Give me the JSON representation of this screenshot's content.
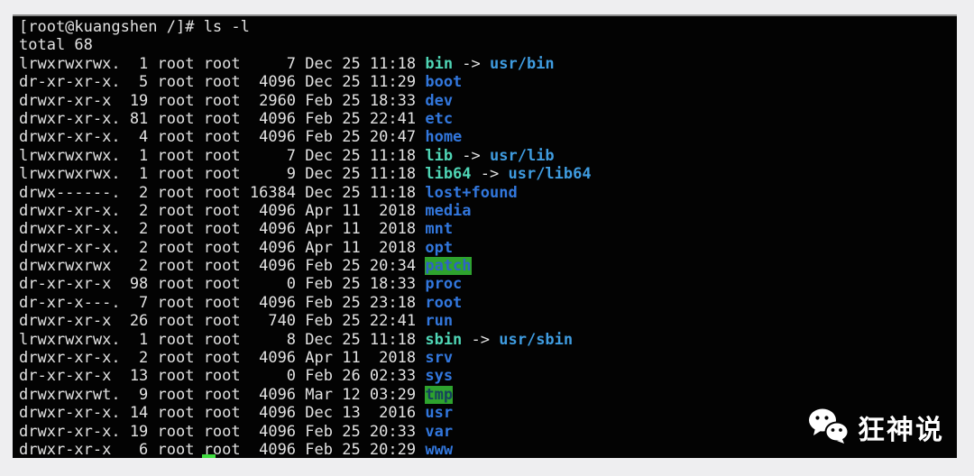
{
  "terminal": {
    "prompt": "[root@kuangshen /]# ls -l",
    "total": "total 68",
    "arrow": "->",
    "rows": [
      {
        "left": "lrwxrwxrwx.  1 root root     7 Dec 25 11:18 ",
        "name": "bin",
        "type": "symlink",
        "target": "usr/bin"
      },
      {
        "left": "dr-xr-xr-x.  5 root root  4096 Dec 25 11:29 ",
        "name": "boot",
        "type": "dir"
      },
      {
        "left": "drwxr-xr-x  19 root root  2960 Feb 25 18:33 ",
        "name": "dev",
        "type": "dir"
      },
      {
        "left": "drwxr-xr-x. 81 root root  4096 Feb 25 22:41 ",
        "name": "etc",
        "type": "dir"
      },
      {
        "left": "drwxr-xr-x.  4 root root  4096 Feb 25 20:47 ",
        "name": "home",
        "type": "dir"
      },
      {
        "left": "lrwxrwxrwx.  1 root root     7 Dec 25 11:18 ",
        "name": "lib",
        "type": "symlink",
        "target": "usr/lib"
      },
      {
        "left": "lrwxrwxrwx.  1 root root     9 Dec 25 11:18 ",
        "name": "lib64",
        "type": "symlink",
        "target": "usr/lib64"
      },
      {
        "left": "drwx------.  2 root root 16384 Dec 25 11:18 ",
        "name": "lost+found",
        "type": "dir"
      },
      {
        "left": "drwxr-xr-x.  2 root root  4096 Apr 11  2018 ",
        "name": "media",
        "type": "dir"
      },
      {
        "left": "drwxr-xr-x.  2 root root  4096 Apr 11  2018 ",
        "name": "mnt",
        "type": "dir"
      },
      {
        "left": "drwxr-xr-x.  2 root root  4096 Apr 11  2018 ",
        "name": "opt",
        "type": "dir"
      },
      {
        "left": "drwxrwxrwx   2 root root  4096 Feb 25 20:34 ",
        "name": "patch",
        "type": "dir-ow"
      },
      {
        "left": "dr-xr-xr-x  98 root root     0 Feb 25 18:33 ",
        "name": "proc",
        "type": "dir"
      },
      {
        "left": "dr-xr-x---.  7 root root  4096 Feb 25 23:18 ",
        "name": "root",
        "type": "dir"
      },
      {
        "left": "drwxr-xr-x  26 root root   740 Feb 25 22:41 ",
        "name": "run",
        "type": "dir"
      },
      {
        "left": "lrwxrwxrwx.  1 root root     8 Dec 25 11:18 ",
        "name": "sbin",
        "type": "symlink",
        "target": "usr/sbin"
      },
      {
        "left": "drwxr-xr-x.  2 root root  4096 Apr 11  2018 ",
        "name": "srv",
        "type": "dir"
      },
      {
        "left": "dr-xr-xr-x  13 root root     0 Feb 26 02:33 ",
        "name": "sys",
        "type": "dir"
      },
      {
        "left": "drwxrwxrwt.  9 root root  4096 Mar 12 03:29 ",
        "name": "tmp",
        "type": "dir-sticky"
      },
      {
        "left": "drwxr-xr-x. 14 root root  4096 Dec 13  2016 ",
        "name": "usr",
        "type": "dir"
      },
      {
        "left": "drwxr-xr-x. 19 root root  4096 Feb 25 20:33 ",
        "name": "var",
        "type": "dir"
      },
      {
        "left": "drwxr-xr-x   6 root root  4096 Feb 25 20:29 ",
        "name": "www",
        "type": "dir"
      }
    ]
  },
  "watermark": {
    "icon": "wechat-icon",
    "label": "狂神说"
  },
  "colors": {
    "page_bg": "#eeeef0",
    "terminal_bg": "#030303",
    "text": "#e2e2e2",
    "directory": "#3277dd",
    "symlink": "#4fd5b5",
    "symlink_target": "#3f9ce0",
    "highlight_bg": "#2ea32e",
    "ow_text": "#2e62c8",
    "sticky_text": "#16425c",
    "cursor": "#3fdc3f"
  }
}
